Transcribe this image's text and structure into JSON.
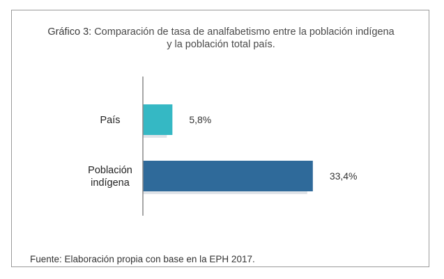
{
  "chart_data": {
    "type": "bar",
    "orientation": "horizontal",
    "title_prefix": "Gráfico 3:",
    "title_line1": "Comparación de tasa de analfabetismo entre la población indígena",
    "title_line2": "y la población total país.",
    "categories": [
      {
        "lines": [
          "País"
        ]
      },
      {
        "lines": [
          "Población",
          "indígena"
        ]
      }
    ],
    "values": [
      5.8,
      33.4
    ],
    "value_labels": [
      "5,8%",
      "33,4%"
    ],
    "colors": [
      "#35b8c4",
      "#2f6a9a"
    ],
    "xlim": [
      0,
      40
    ],
    "source": "Fuente: Elaboración propia con base en la EPH 2017."
  }
}
